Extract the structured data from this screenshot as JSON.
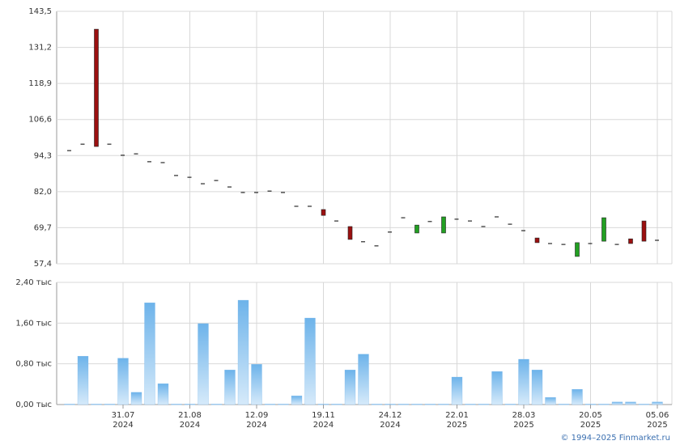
{
  "chart_data": [
    {
      "type": "candlestick",
      "categories": [
        null,
        null,
        null,
        null,
        "31.07\n2024",
        null,
        null,
        null,
        null,
        "21.08\n2024",
        null,
        null,
        null,
        null,
        "12.09\n2024",
        null,
        null,
        null,
        null,
        "19.11\n2024",
        null,
        null,
        null,
        null,
        "24.12\n2024",
        null,
        null,
        null,
        null,
        "22.01\n2025",
        null,
        null,
        null,
        null,
        "28.03\n2025",
        null,
        null,
        null,
        null,
        "20.05\n2025",
        null,
        null,
        null,
        null,
        "05.06\n2025"
      ],
      "open": [
        96.0,
        98.2,
        137.4,
        98.2,
        94.4,
        94.9,
        92.2,
        91.9,
        87.5,
        86.9,
        84.7,
        85.8,
        83.6,
        81.7,
        81.7,
        82.2,
        81.7,
        77.0,
        77.0,
        75.9,
        72.0,
        70.1,
        64.9,
        63.5,
        68.2,
        73.1,
        67.9,
        71.8,
        67.9,
        72.6,
        72.0,
        70.1,
        73.4,
        70.9,
        68.7,
        66.2,
        64.3,
        64.0,
        59.9,
        64.3,
        65.1,
        64.0,
        65.9,
        72.0,
        65.4
      ],
      "close": [
        96.0,
        98.2,
        97.4,
        98.2,
        94.4,
        94.9,
        92.2,
        91.9,
        87.5,
        86.9,
        84.7,
        85.8,
        83.6,
        81.7,
        81.7,
        82.2,
        81.7,
        77.0,
        77.0,
        73.9,
        72.0,
        65.7,
        64.9,
        63.5,
        68.2,
        73.1,
        70.6,
        71.8,
        73.4,
        72.6,
        72.0,
        70.1,
        73.4,
        70.9,
        68.7,
        64.6,
        64.3,
        64.0,
        64.6,
        64.3,
        73.1,
        64.0,
        64.3,
        65.1,
        65.4
      ],
      "up_color": "#22a022",
      "down_color": "#9b1010",
      "flat_color": "#000000",
      "ylim": [
        57.4,
        143.5
      ],
      "yticks": [
        {
          "value": 57.4,
          "label": "57,4"
        },
        {
          "value": 69.7,
          "label": "69,7"
        },
        {
          "value": 82.0,
          "label": "82,0"
        },
        {
          "value": 94.3,
          "label": "94,3"
        },
        {
          "value": 106.6,
          "label": "106,6"
        },
        {
          "value": 118.9,
          "label": "118,9"
        },
        {
          "value": 131.2,
          "label": "131,2"
        },
        {
          "value": 143.5,
          "label": "143,5"
        }
      ],
      "grid": true
    },
    {
      "type": "bar",
      "values": [
        0.01,
        0.95,
        0.01,
        0.01,
        0.91,
        0.24,
        2.0,
        0.41,
        0.01,
        0.01,
        1.59,
        0.01,
        0.68,
        2.05,
        0.79,
        0.01,
        0.01,
        0.17,
        1.7,
        0.01,
        0.01,
        0.68,
        0.99,
        0.01,
        0.01,
        0.01,
        0.01,
        0.01,
        0.01,
        0.54,
        0.01,
        0.01,
        0.65,
        0.01,
        0.89,
        0.68,
        0.14,
        0.01,
        0.3,
        0.01,
        0.01,
        0.05,
        0.05,
        0.01,
        0.05
      ],
      "color": "#7cb9ec",
      "ylim": [
        0,
        2.4
      ],
      "yticks": [
        {
          "value": 0,
          "label": "0,00 тыс"
        },
        {
          "value": 0.8,
          "label": "0,80 тыс"
        },
        {
          "value": 1.6,
          "label": "1,60 тыс"
        },
        {
          "value": 2.4,
          "label": "2,40 тыс"
        }
      ],
      "grid": true
    }
  ],
  "footer": "© 1994–2025 Finmarket.ru"
}
